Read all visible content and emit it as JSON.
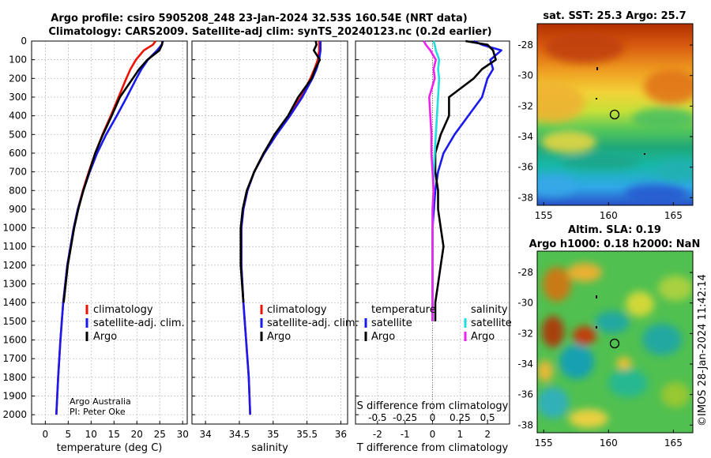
{
  "title": {
    "line1": "Argo profile: csiro 5905208_248 23-Jan-2024 32.53S 160.54E (NRT data)",
    "line2": "Climatology: CARS2009. Satellite-adj clim: synTS_20240123.nc (0.2d earlier)"
  },
  "colors": {
    "climatology": "#ee1100",
    "satellite_clim": "#1a1aee",
    "argo": "#000000",
    "satellite_diff": "#22dddd",
    "argo_s_diff": "#ee22ee",
    "grid": "#bbbbbb"
  },
  "legend": {
    "climatology": "climatology",
    "satellite_adj_clim": "satellite-adj. clim.",
    "argo": "Argo",
    "temperature": "temperature",
    "salinity": "salinity",
    "satellite": "satellite"
  },
  "credit": {
    "org": "Argo Australia",
    "pi": "PI: Peter Oke"
  },
  "depth_ticks": [
    0,
    100,
    200,
    300,
    400,
    500,
    600,
    700,
    800,
    900,
    1000,
    1100,
    1200,
    1300,
    1400,
    1500,
    1600,
    1700,
    1800,
    1900,
    2000
  ],
  "chart_data": [
    {
      "id": "temperature",
      "type": "line",
      "xlabel": "temperature (deg C)",
      "ylabel": "depth",
      "xlim": [
        -3,
        31
      ],
      "ylim": [
        2050,
        0
      ],
      "xticks": [
        0,
        5,
        10,
        15,
        20,
        25,
        30
      ],
      "depth": [
        0,
        20,
        50,
        100,
        150,
        200,
        300,
        400,
        500,
        600,
        700,
        800,
        900,
        1000,
        1200,
        1400,
        1600,
        1800,
        2000
      ],
      "series": [
        {
          "name": "climatology",
          "color": "#ee1100",
          "values": [
            24.1,
            23.5,
            21.5,
            19.8,
            18.6,
            17.7,
            16.0,
            14.3,
            12.5,
            10.9,
            9.5,
            8.2,
            7.1,
            6.2,
            4.8,
            3.9,
            3.3,
            2.8,
            2.4
          ]
        },
        {
          "name": "satellite-adj. clim.",
          "color": "#1a1aee",
          "values": [
            25.7,
            25.4,
            24.4,
            22.4,
            21.0,
            19.9,
            17.8,
            15.6,
            13.3,
            11.3,
            9.7,
            8.3,
            7.1,
            6.2,
            4.8,
            3.9,
            3.3,
            2.8,
            2.4
          ]
        },
        {
          "name": "Argo",
          "color": "#000000",
          "values": [
            25.6,
            25.5,
            24.9,
            22.3,
            20.5,
            19.1,
            16.3,
            14.5,
            12.6,
            10.9,
            9.6,
            8.3,
            7.2,
            6.3,
            4.9,
            4.0
          ]
        }
      ]
    },
    {
      "id": "salinity",
      "type": "line",
      "xlabel": "salinity",
      "ylabel": "depth",
      "xlim": [
        33.8,
        36.1
      ],
      "ylim": [
        2050,
        0
      ],
      "xticks": [
        34,
        34.5,
        35,
        35.5,
        36
      ],
      "tick_labels": [
        "34",
        "34.5",
        "35",
        "35.5",
        "36"
      ],
      "depth": [
        0,
        20,
        50,
        100,
        150,
        200,
        300,
        400,
        500,
        600,
        700,
        800,
        900,
        1000,
        1200,
        1400,
        1600,
        1800,
        2000
      ],
      "series": [
        {
          "name": "climatology",
          "color": "#ee1100",
          "values": [
            35.68,
            35.68,
            35.68,
            35.66,
            35.61,
            35.55,
            35.41,
            35.23,
            35.04,
            34.86,
            34.72,
            34.62,
            34.56,
            34.53,
            34.53,
            34.56,
            34.6,
            34.64,
            34.66
          ]
        },
        {
          "name": "satellite-adj. clim.",
          "color": "#1a1aee",
          "values": [
            35.7,
            35.7,
            35.7,
            35.68,
            35.64,
            35.58,
            35.43,
            35.25,
            35.05,
            34.87,
            34.72,
            34.62,
            34.56,
            34.53,
            34.53,
            34.56,
            34.6,
            34.64,
            34.66
          ]
        },
        {
          "name": "Argo",
          "color": "#000000",
          "values": [
            35.63,
            35.64,
            35.6,
            35.69,
            35.62,
            35.57,
            35.37,
            35.22,
            35.02,
            34.86,
            34.72,
            34.61,
            34.55,
            34.52,
            34.52,
            34.56
          ]
        }
      ]
    },
    {
      "id": "difference",
      "type": "line",
      "xlabel": "T difference from climatology",
      "top_label": "S difference from climatology",
      "ylabel": "depth",
      "xlim": [
        -2.8,
        2.8
      ],
      "ylim": [
        2050,
        0
      ],
      "xticks": [
        -2,
        -1,
        0,
        1,
        2
      ],
      "s_ticks": [
        -0.5,
        -0.25,
        0,
        0.25,
        0.5
      ],
      "s_tick_labels": [
        "-0.5",
        "-0.25",
        "0",
        "0.25",
        "0.5"
      ],
      "s_scale_per_t": 0.25,
      "depth": [
        0,
        20,
        50,
        100,
        150,
        200,
        300,
        400,
        500,
        600,
        700,
        800,
        900,
        1000,
        1100,
        1200,
        1300,
        1400,
        1500
      ],
      "series": [
        {
          "name": "satellite (temperature)",
          "color": "#1a1aee",
          "values": [
            1.5,
            1.8,
            2.5,
            2.1,
            2.2,
            2.0,
            1.8,
            1.3,
            0.8,
            0.4,
            0.2,
            0.1,
            0.05,
            0.0,
            0.0,
            0.0,
            0.0,
            0.0,
            0.0
          ]
        },
        {
          "name": "Argo (temperature)",
          "color": "#000000",
          "values": [
            1.2,
            2.0,
            2.2,
            2.3,
            1.8,
            1.5,
            0.6,
            0.6,
            0.3,
            0.1,
            0.1,
            0.2,
            0.2,
            0.3,
            0.4,
            0.3,
            0.2,
            0.1,
            0.1
          ]
        },
        {
          "name": "satellite (salinity)",
          "color": "#22dddd",
          "values": [
            0.01,
            0.02,
            0.03,
            0.06,
            0.05,
            0.06,
            0.05,
            0.04,
            0.03,
            0.02,
            0.01,
            0.01,
            0.0,
            0.0,
            0.0,
            0.0,
            0.0,
            0.0,
            0.0
          ]
        },
        {
          "name": "Argo (salinity)",
          "color": "#ee22ee",
          "values": [
            -0.08,
            -0.06,
            -0.02,
            0.03,
            0.01,
            0.02,
            -0.03,
            -0.02,
            -0.01,
            -0.01,
            0.0,
            0.01,
            0.0,
            0.0,
            0.0,
            0.0,
            0.0,
            0.0,
            0.0
          ]
        }
      ]
    },
    {
      "id": "sst_map",
      "type": "heatmap",
      "title": "sat. SST: 25.3 Argo: 25.7",
      "xlim": [
        154.5,
        166.5
      ],
      "ylim": [
        -38.5,
        -26.6
      ],
      "xticks": [
        155,
        160,
        165
      ],
      "yticks": [
        -28,
        -30,
        -32,
        -34,
        -36,
        -38
      ],
      "profile_position": {
        "lon": 160.54,
        "lat": -32.53
      }
    },
    {
      "id": "sla_map",
      "type": "heatmap",
      "title_line1": "Altim. SLA: 0.19",
      "title_line2": "Argo h1000: 0.18 h2000: NaN",
      "xlim": [
        154.5,
        166.5
      ],
      "ylim": [
        -38.5,
        -26.6
      ],
      "xticks": [
        155,
        160,
        165
      ],
      "yticks": [
        -28,
        -30,
        -32,
        -34,
        -36,
        -38
      ],
      "profile_position": {
        "lon": 160.54,
        "lat": -32.53
      }
    }
  ],
  "footer_stamp": "©IMOS 28-Jan-2024 11:42:14"
}
